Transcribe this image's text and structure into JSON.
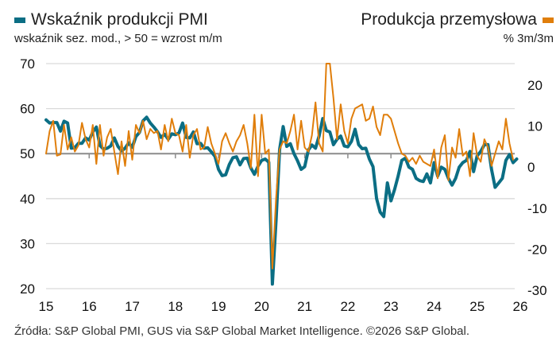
{
  "chart_data": {
    "type": "line",
    "title": "Wskaźnik produkcji PMI",
    "subtitle": "wskaźnik sez. mod., > 50 = wzrost m/m",
    "right_title": "Produkcja przemysłowa",
    "right_subtitle": "% 3m/3m",
    "source": "Źródła: S&P Global PMI, GUS via S&P Global Market Intelligence. ©2026 S&P Global.",
    "x_ticks": [
      "15",
      "16",
      "17",
      "18",
      "19",
      "20",
      "21",
      "22",
      "23",
      "24",
      "25",
      "26"
    ],
    "x_range": [
      2015,
      2026
    ],
    "left_axis": {
      "ticks": [
        70,
        60,
        50,
        40,
        30,
        20
      ],
      "ylim": [
        20,
        70
      ],
      "reference_line": 50
    },
    "right_axis": {
      "ticks": [
        20,
        10,
        0,
        -10,
        -20,
        -30
      ],
      "ylim": [
        -30,
        20
      ]
    },
    "grid": true,
    "colors": {
      "pmi": "#0b6e84",
      "ip": "#e07e0b",
      "grid": "#d9d9d9",
      "reference": "#8c8c8c"
    },
    "series": [
      {
        "name": "Wskaźnik produkcji PMI",
        "axis": "left",
        "start": "2015-01",
        "frequency": "monthly",
        "values": [
          57.5,
          56.8,
          56.9,
          56.9,
          55.0,
          57.2,
          56.8,
          51.2,
          51.3,
          52.3,
          52.3,
          53.5,
          53.0,
          54.8,
          55.9,
          51.8,
          51.0,
          51.2,
          51.7,
          53.5,
          51.6,
          50.6,
          51.2,
          52.4,
          51.4,
          53.8,
          54.7,
          57.3,
          58.1,
          56.8,
          55.9,
          54.9,
          53.6,
          54.3,
          53.2,
          54.4,
          54.2,
          54.6,
          56.8,
          53.6,
          53.5,
          54.8,
          52.2,
          52.3,
          51.2,
          51.3,
          50.4,
          49.4,
          46.5,
          45.1,
          45.3,
          47.6,
          49.1,
          49.3,
          47.5,
          48.9,
          49.0,
          46.8,
          45.4,
          47.2,
          48.5,
          48.8,
          48.1,
          21.0,
          35.0,
          50.9,
          56.0,
          51.6,
          52.2,
          50.0,
          48.4,
          46.5,
          47.1,
          50.8,
          51.9,
          51.2,
          53.9,
          57.8,
          55.1,
          54.8,
          52.0,
          53.2,
          53.9,
          51.7,
          51.5,
          52.7,
          55.4,
          52.0,
          51.1,
          51.2,
          48.8,
          47.1,
          40.0,
          37.0,
          36.0,
          43.5,
          39.5,
          42.0,
          45.0,
          48.5,
          49.0,
          47.0,
          46.5,
          44.5,
          44.0,
          43.8,
          45.5,
          43.5,
          48.0,
          45.0,
          47.0,
          46.5,
          44.5,
          43.0,
          44.5,
          47.0,
          48.0,
          48.5,
          50.5,
          46.0,
          49.5,
          50.5,
          52.0,
          52.0,
          46.5,
          42.5,
          43.5,
          44.5,
          48.5,
          49.8,
          48.0,
          48.8
        ]
      },
      {
        "name": "Produkcja przemysłowa",
        "axis": "right",
        "start": "2015-01",
        "frequency": "monthly",
        "values": [
          0.0,
          5.5,
          8.0,
          -0.5,
          -0.2,
          7.0,
          1.0,
          4.0,
          0.5,
          2.0,
          7.5,
          3.5,
          1.5,
          7.0,
          -2.5,
          7.0,
          -0.5,
          4.0,
          6.0,
          0.5,
          -5.0,
          3.0,
          -3.0,
          5.5,
          -1.5,
          7.0,
          5.0,
          8.0,
          3.5,
          6.0,
          5.0,
          5.5,
          1.0,
          7.0,
          3.0,
          8.5,
          5.0,
          4.5,
          0.5,
          7.0,
          -1.0,
          4.5,
          6.0,
          1.0,
          1.5,
          6.5,
          2.5,
          0.0,
          -2.5,
          3.0,
          5.0,
          2.5,
          0.5,
          3.0,
          4.5,
          7.0,
          2.5,
          -3.5,
          9.5,
          -5.5,
          9.5,
          0.0,
          1.0,
          -28.0,
          -11.0,
          1.0,
          3.0,
          2.5,
          5.5,
          9.5,
          1.0,
          8.0,
          1.5,
          0.5,
          4.5,
          12.5,
          2.5,
          0.5,
          29.0,
          28.0,
          13.5,
          3.5,
          12.0,
          5.5,
          2.5,
          8.5,
          11.0,
          11.5,
          12.0,
          8.0,
          8.5,
          11.5,
          6.5,
          4.5,
          9.5,
          9.5,
          8.5,
          5.5,
          2.5,
          0.0,
          -0.5,
          -2.0,
          -1.0,
          -2.5,
          -0.5,
          -2.0,
          -2.5,
          -3.0,
          1.0,
          -6.0,
          1.5,
          4.5,
          -6.5,
          1.5,
          -1.0,
          6.0,
          -0.5,
          0.5,
          -5.5,
          5.0,
          -0.5,
          -2.0,
          3.5,
          1.5,
          -3.0,
          0.0,
          3.0,
          1.0,
          8.5,
          2.5,
          -1.5
        ]
      }
    ]
  }
}
